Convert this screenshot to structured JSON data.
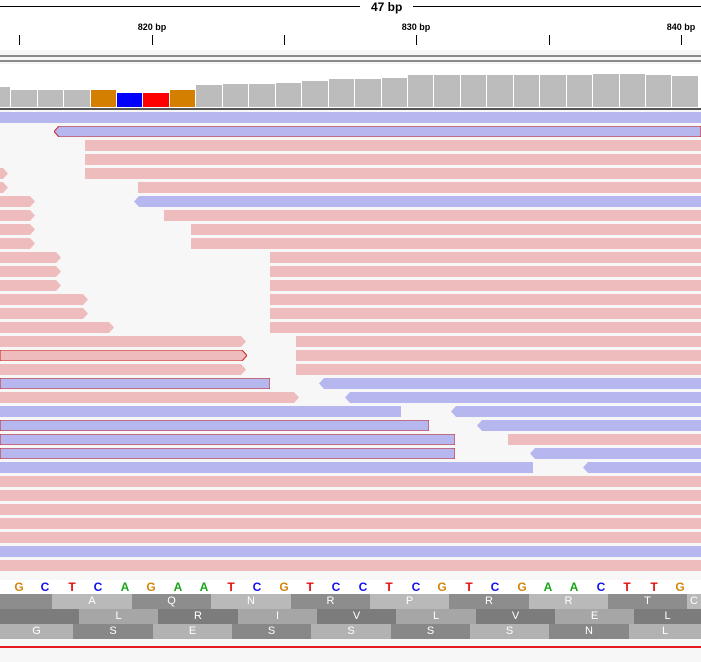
{
  "ruler": {
    "span_label": "47 bp",
    "ticks": [
      "820 bp",
      "830 bp",
      "840 bp"
    ]
  },
  "coverage": {
    "colors": {
      "normal": "#bcbcbc",
      "mismatch_A": "#d47f00",
      "mismatch_C": "#0000ff",
      "mismatch_T": "#ff0000"
    },
    "bars": [
      {
        "level": 0.5,
        "type": "normal"
      },
      {
        "level": 0.42,
        "type": "normal"
      },
      {
        "level": 0.42,
        "type": "normal"
      },
      {
        "level": 0.42,
        "type": "normal"
      },
      {
        "level": 0.42,
        "type": "mismatch_A"
      },
      {
        "level": 0.35,
        "type": "mismatch_C"
      },
      {
        "level": 0.35,
        "type": "mismatch_T"
      },
      {
        "level": 0.42,
        "type": "mismatch_A"
      },
      {
        "level": 0.55,
        "type": "normal"
      },
      {
        "level": 0.57,
        "type": "normal"
      },
      {
        "level": 0.57,
        "type": "normal"
      },
      {
        "level": 0.6,
        "type": "normal"
      },
      {
        "level": 0.64,
        "type": "normal"
      },
      {
        "level": 0.69,
        "type": "normal"
      },
      {
        "level": 0.69,
        "type": "normal"
      },
      {
        "level": 0.72,
        "type": "normal"
      },
      {
        "level": 0.79,
        "type": "normal"
      },
      {
        "level": 0.79,
        "type": "normal"
      },
      {
        "level": 0.79,
        "type": "normal"
      },
      {
        "level": 0.79,
        "type": "normal"
      },
      {
        "level": 0.79,
        "type": "normal"
      },
      {
        "level": 0.79,
        "type": "normal"
      },
      {
        "level": 0.79,
        "type": "normal"
      },
      {
        "level": 0.82,
        "type": "normal"
      },
      {
        "level": 0.82,
        "type": "normal"
      },
      {
        "level": 0.79,
        "type": "normal"
      },
      {
        "level": 0.77,
        "type": "normal"
      }
    ]
  },
  "reads": {
    "colors": {
      "forward": "#eebcbc",
      "reverse": "#b7b7ef",
      "outline": "#cc2222"
    }
  },
  "sequence": {
    "bases": [
      "G",
      "C",
      "T",
      "C",
      "A",
      "G",
      "A",
      "A",
      "T",
      "C",
      "G",
      "T",
      "C",
      "C",
      "T",
      "C",
      "G",
      "T",
      "C",
      "G",
      "A",
      "A",
      "C",
      "T",
      "T",
      "G"
    ],
    "colors": {
      "A": "#1aa31a",
      "C": "#1010ee",
      "G": "#d4860b",
      "T": "#e01010"
    }
  },
  "translation": {
    "frames": [
      [
        "",
        "A",
        "Q",
        "N",
        "R",
        "P",
        "R",
        "R",
        "T",
        "C"
      ],
      [
        "",
        "L",
        "R",
        "I",
        "V",
        "L",
        "V",
        "E",
        "L"
      ],
      [
        "G",
        "S",
        "E",
        "S",
        "S",
        "S",
        "S",
        "N",
        "L"
      ]
    ]
  }
}
